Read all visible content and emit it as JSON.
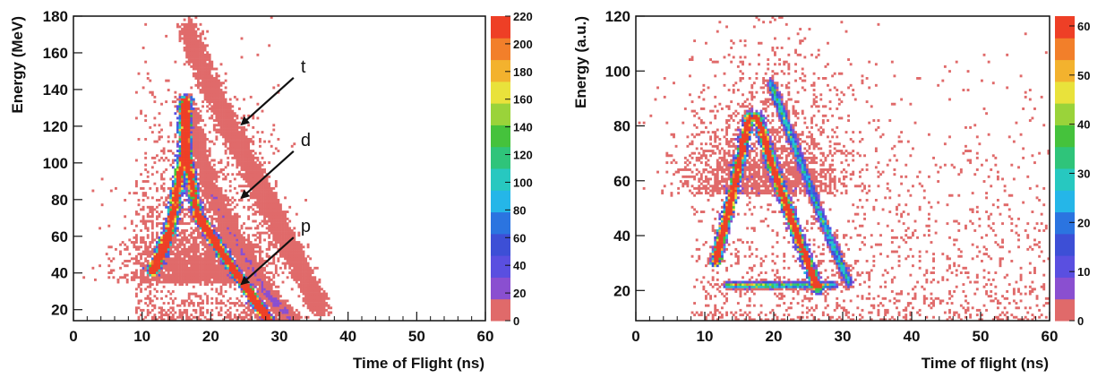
{
  "colors": {
    "palette": [
      "#e06a6a",
      "#8a4fd0",
      "#5a4fe0",
      "#3d4fd6",
      "#2b74e0",
      "#25b6e8",
      "#27c8c0",
      "#2fc47a",
      "#45c23c",
      "#9ad33a",
      "#e9e23b",
      "#f3b22e",
      "#f27f2a",
      "#ee3f26"
    ],
    "axis": "#111111",
    "background": "#ffffff"
  },
  "chart_data": [
    {
      "type": "heatmap",
      "xlabel": "Time of Flight (ns)",
      "ylabel": "Energy (MeV)",
      "xlim": [
        0,
        60
      ],
      "ylim": [
        14,
        180
      ],
      "x_ticks": [
        "0",
        "10",
        "20",
        "30",
        "40",
        "50",
        "60"
      ],
      "y_ticks": [
        "20",
        "40",
        "60",
        "80",
        "100",
        "120",
        "140",
        "160",
        "180"
      ],
      "colorbar_range": [
        0,
        220
      ],
      "colorbar_ticks": [
        "0",
        "20",
        "40",
        "60",
        "80",
        "100",
        "120",
        "140",
        "160",
        "180",
        "200",
        "220"
      ],
      "grid": false,
      "annotations": [
        {
          "label": "t",
          "tip": [
            24.5,
            121
          ]
        },
        {
          "label": "d",
          "tip": [
            24.5,
            81
          ]
        },
        {
          "label": "p",
          "tip": [
            24.5,
            34
          ]
        }
      ],
      "loci": [
        {
          "points": [
            [
              11.5,
              40
            ],
            [
              14,
              62
            ],
            [
              16.3,
              110
            ],
            [
              16.3,
              135
            ]
          ],
          "peak": 200,
          "width": 1.1
        },
        {
          "points": [
            [
              16.3,
              110
            ],
            [
              18,
              72
            ],
            [
              21,
              55
            ],
            [
              25,
              33
            ],
            [
              28.5,
              14
            ]
          ],
          "peak": 140,
          "width": 1.0
        },
        {
          "points": [
            [
              16.3,
              135
            ],
            [
              20,
              85
            ],
            [
              24,
              55
            ],
            [
              28,
              30
            ],
            [
              32,
              14
            ]
          ],
          "peak": 6,
          "width": 1.6
        },
        {
          "points": [
            [
              16.5,
              175
            ],
            [
              20,
              140
            ],
            [
              24,
              110
            ],
            [
              28,
              80
            ],
            [
              32,
              50
            ],
            [
              36,
              20
            ]
          ],
          "peak": 2,
          "width": 2.0
        }
      ],
      "cloud": {
        "center": [
          18,
          35
        ],
        "spread": [
          5,
          30
        ],
        "count": 2600
      },
      "sparse": {
        "count": 1200,
        "xrange": [
          9,
          30
        ],
        "yrange": [
          14,
          180
        ]
      }
    },
    {
      "type": "heatmap",
      "xlabel": "Time of flight (ns)",
      "ylabel": "Energy (a.u.)",
      "xlim": [
        0,
        60
      ],
      "ylim": [
        9,
        120
      ],
      "x_ticks": [
        "0",
        "10",
        "20",
        "30",
        "40",
        "50",
        "60"
      ],
      "y_ticks": [
        "20",
        "40",
        "60",
        "80",
        "100",
        "120"
      ],
      "colorbar_range": [
        0,
        62
      ],
      "colorbar_ticks": [
        "0",
        "10",
        "20",
        "30",
        "40",
        "50",
        "60"
      ],
      "grid": false,
      "loci": [
        {
          "points": [
            [
              11.5,
              30
            ],
            [
              14,
              55
            ],
            [
              16.5,
              84
            ]
          ],
          "peak": 45,
          "width": 1.0
        },
        {
          "points": [
            [
              17.5,
              84
            ],
            [
              20,
              64
            ],
            [
              23,
              43
            ],
            [
              26.5,
              20
            ]
          ],
          "peak": 35,
          "width": 1.0
        },
        {
          "points": [
            [
              19.5,
              96
            ],
            [
              23,
              73
            ],
            [
              27,
              46
            ],
            [
              31,
              22
            ]
          ],
          "peak": 10,
          "width": 0.9
        },
        {
          "points": [
            [
              13,
              22
            ],
            [
              20,
              22
            ],
            [
              29,
              22
            ]
          ],
          "peak": 8,
          "width": 0.6
        }
      ],
      "cloud": {
        "center": [
          19,
          55
        ],
        "spread": [
          6,
          28
        ],
        "count": 2000
      },
      "sparse": {
        "count": 1400,
        "xrange": [
          8,
          60
        ],
        "yrange": [
          9,
          120
        ]
      }
    }
  ]
}
